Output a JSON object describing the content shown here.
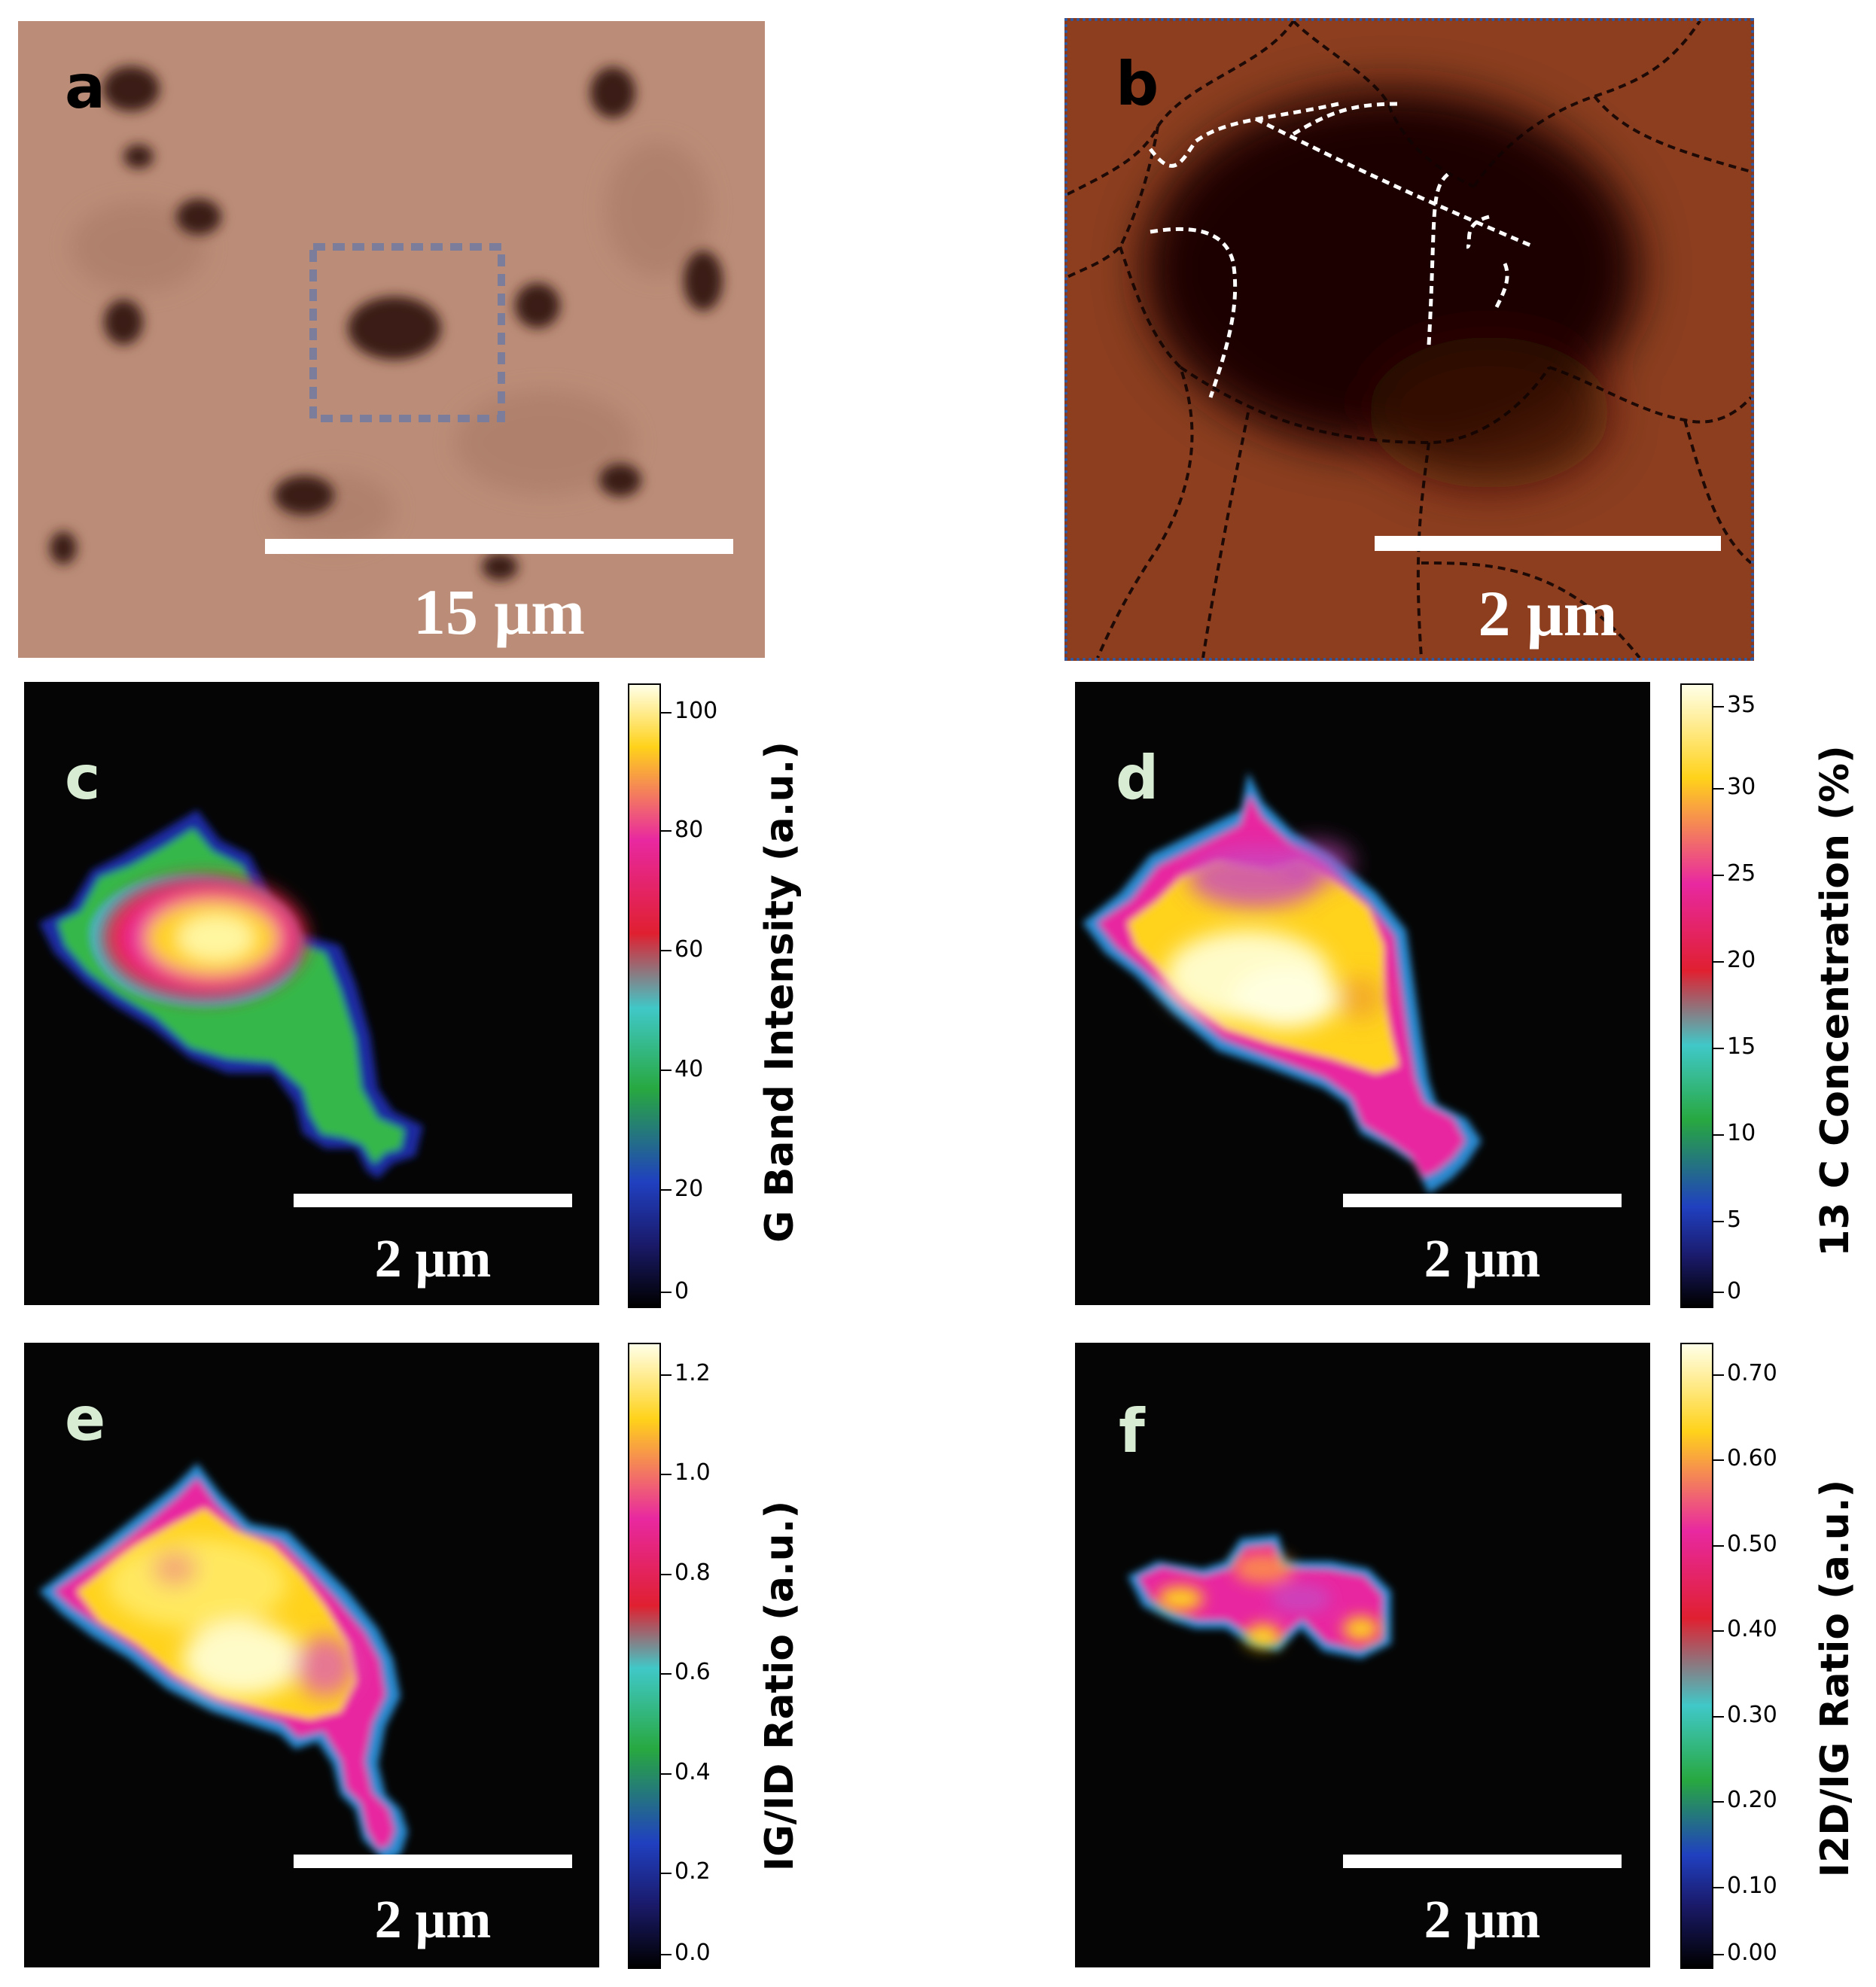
{
  "panels": {
    "a": {
      "label": "a",
      "scale": "15 μm"
    },
    "b": {
      "label": "b",
      "scale": "2 μm"
    },
    "c": {
      "label": "c",
      "scale": "2 μm",
      "colorbar_title": "G Band Intensity (a.u.)",
      "ticks": [
        "100",
        "80",
        "60",
        "40",
        "20",
        "0"
      ]
    },
    "d": {
      "label": "d",
      "scale": "2 μm",
      "colorbar_title": "13 C Concentration (%)",
      "ticks": [
        "35",
        "30",
        "25",
        "20",
        "15",
        "10",
        "5",
        "0"
      ]
    },
    "e": {
      "label": "e",
      "scale": "2 μm",
      "colorbar_title": "IG/ID Ratio (a.u.)",
      "ticks": [
        "1.2",
        "1.0",
        "0.8",
        "0.6",
        "0.4",
        "0.2",
        "0.0"
      ]
    },
    "f": {
      "label": "f",
      "scale": "2 μm",
      "colorbar_title": "I2D/IG Ratio (a.u.)",
      "ticks": [
        "0.70",
        "0.60",
        "0.50",
        "0.40",
        "0.30",
        "0.20",
        "0.10",
        "0.00"
      ]
    }
  },
  "colors": {
    "optical_background": "#b98a74",
    "afm_background": "#8a3a1c",
    "map_background": "#050505",
    "label_light": "#d8ecd4",
    "afm_frame": "#2a5aa8"
  }
}
